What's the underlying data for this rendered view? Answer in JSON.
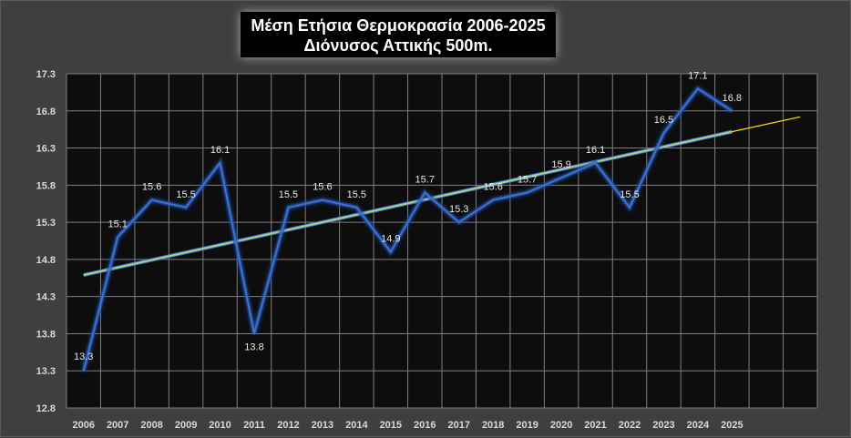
{
  "title": {
    "line1": "Μέση Ετήσια Θερμοκρασία 2006-2025",
    "line2": "Διόνυσος Αττικής 500m."
  },
  "colors": {
    "background": "#3f3f3f",
    "plot_bg": "#0d0d0d",
    "grid": "#7f7f7f",
    "series": "#4472c4",
    "series_glow": "#1f4fb0",
    "trend_fill": "#a9d18e",
    "trend_outer": "#4472c4",
    "trend_ext": "#ffe600"
  },
  "chart_data": {
    "type": "line",
    "title": "Μέση Ετήσια Θερμοκρασία 2006-2025 Διόνυσος Αττικής 500m.",
    "categories": [
      "2006",
      "2007",
      "2008",
      "2009",
      "2010",
      "2011",
      "2012",
      "2013",
      "2014",
      "2015",
      "2016",
      "2017",
      "2018",
      "2019",
      "2020",
      "2021",
      "2022",
      "2023",
      "2024",
      "2025"
    ],
    "series": [
      {
        "values": [
          13.3,
          15.1,
          15.6,
          15.5,
          16.1,
          13.8,
          15.5,
          15.6,
          15.5,
          14.9,
          15.7,
          15.3,
          15.6,
          15.7,
          15.9,
          16.1,
          15.5,
          16.5,
          17.1,
          16.8
        ],
        "labels": [
          "13.3",
          "15.1",
          "15.6",
          "15.5",
          "16.1",
          "13.8",
          "15.5",
          "15.6",
          "15.5",
          "14.9",
          "15.7",
          "15.3",
          "15.6",
          "15.7",
          "15.9",
          "16.1",
          "15.5",
          "16.5",
          "17.1",
          "16.8"
        ]
      }
    ],
    "trendline": {
      "type": "linear",
      "start": 14.59,
      "end": 16.52,
      "forecast_periods": 2,
      "forecast_end": 16.72
    },
    "y_ticks": [
      "17.3",
      "16.8",
      "16.3",
      "15.8",
      "15.3",
      "14.8",
      "14.3",
      "13.8",
      "13.3",
      "12.8"
    ],
    "ylim": [
      12.8,
      17.3
    ],
    "x_slots": 22,
    "grid": true,
    "legend": "none"
  }
}
